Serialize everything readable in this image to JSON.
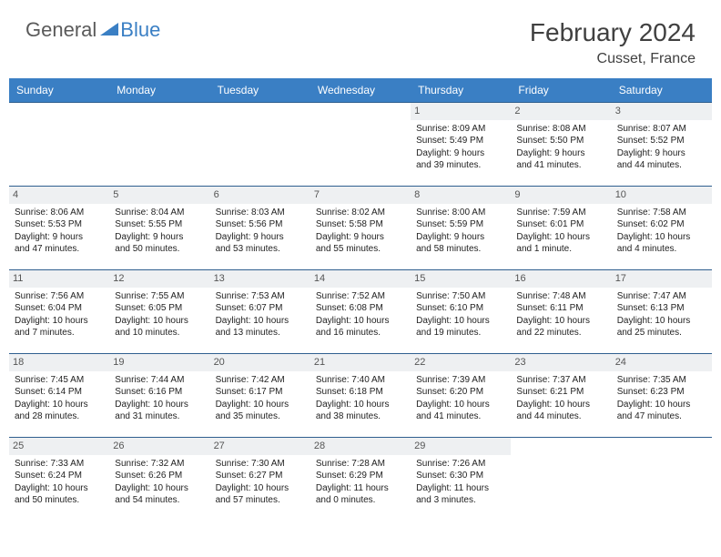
{
  "logo": {
    "text1": "General",
    "text2": "Blue"
  },
  "title": "February 2024",
  "location": "Cusset, France",
  "weekdays": [
    "Sunday",
    "Monday",
    "Tuesday",
    "Wednesday",
    "Thursday",
    "Friday",
    "Saturday"
  ],
  "colors": {
    "header_bg": "#3a7fc4",
    "header_text": "#ffffff",
    "rule": "#2f5f8f",
    "daynum_bg": "#eef0f2"
  },
  "grid": [
    [
      null,
      null,
      null,
      null,
      {
        "n": "1",
        "sr": "Sunrise: 8:09 AM",
        "ss": "Sunset: 5:49 PM",
        "d1": "Daylight: 9 hours",
        "d2": "and 39 minutes."
      },
      {
        "n": "2",
        "sr": "Sunrise: 8:08 AM",
        "ss": "Sunset: 5:50 PM",
        "d1": "Daylight: 9 hours",
        "d2": "and 41 minutes."
      },
      {
        "n": "3",
        "sr": "Sunrise: 8:07 AM",
        "ss": "Sunset: 5:52 PM",
        "d1": "Daylight: 9 hours",
        "d2": "and 44 minutes."
      }
    ],
    [
      {
        "n": "4",
        "sr": "Sunrise: 8:06 AM",
        "ss": "Sunset: 5:53 PM",
        "d1": "Daylight: 9 hours",
        "d2": "and 47 minutes."
      },
      {
        "n": "5",
        "sr": "Sunrise: 8:04 AM",
        "ss": "Sunset: 5:55 PM",
        "d1": "Daylight: 9 hours",
        "d2": "and 50 minutes."
      },
      {
        "n": "6",
        "sr": "Sunrise: 8:03 AM",
        "ss": "Sunset: 5:56 PM",
        "d1": "Daylight: 9 hours",
        "d2": "and 53 minutes."
      },
      {
        "n": "7",
        "sr": "Sunrise: 8:02 AM",
        "ss": "Sunset: 5:58 PM",
        "d1": "Daylight: 9 hours",
        "d2": "and 55 minutes."
      },
      {
        "n": "8",
        "sr": "Sunrise: 8:00 AM",
        "ss": "Sunset: 5:59 PM",
        "d1": "Daylight: 9 hours",
        "d2": "and 58 minutes."
      },
      {
        "n": "9",
        "sr": "Sunrise: 7:59 AM",
        "ss": "Sunset: 6:01 PM",
        "d1": "Daylight: 10 hours",
        "d2": "and 1 minute."
      },
      {
        "n": "10",
        "sr": "Sunrise: 7:58 AM",
        "ss": "Sunset: 6:02 PM",
        "d1": "Daylight: 10 hours",
        "d2": "and 4 minutes."
      }
    ],
    [
      {
        "n": "11",
        "sr": "Sunrise: 7:56 AM",
        "ss": "Sunset: 6:04 PM",
        "d1": "Daylight: 10 hours",
        "d2": "and 7 minutes."
      },
      {
        "n": "12",
        "sr": "Sunrise: 7:55 AM",
        "ss": "Sunset: 6:05 PM",
        "d1": "Daylight: 10 hours",
        "d2": "and 10 minutes."
      },
      {
        "n": "13",
        "sr": "Sunrise: 7:53 AM",
        "ss": "Sunset: 6:07 PM",
        "d1": "Daylight: 10 hours",
        "d2": "and 13 minutes."
      },
      {
        "n": "14",
        "sr": "Sunrise: 7:52 AM",
        "ss": "Sunset: 6:08 PM",
        "d1": "Daylight: 10 hours",
        "d2": "and 16 minutes."
      },
      {
        "n": "15",
        "sr": "Sunrise: 7:50 AM",
        "ss": "Sunset: 6:10 PM",
        "d1": "Daylight: 10 hours",
        "d2": "and 19 minutes."
      },
      {
        "n": "16",
        "sr": "Sunrise: 7:48 AM",
        "ss": "Sunset: 6:11 PM",
        "d1": "Daylight: 10 hours",
        "d2": "and 22 minutes."
      },
      {
        "n": "17",
        "sr": "Sunrise: 7:47 AM",
        "ss": "Sunset: 6:13 PM",
        "d1": "Daylight: 10 hours",
        "d2": "and 25 minutes."
      }
    ],
    [
      {
        "n": "18",
        "sr": "Sunrise: 7:45 AM",
        "ss": "Sunset: 6:14 PM",
        "d1": "Daylight: 10 hours",
        "d2": "and 28 minutes."
      },
      {
        "n": "19",
        "sr": "Sunrise: 7:44 AM",
        "ss": "Sunset: 6:16 PM",
        "d1": "Daylight: 10 hours",
        "d2": "and 31 minutes."
      },
      {
        "n": "20",
        "sr": "Sunrise: 7:42 AM",
        "ss": "Sunset: 6:17 PM",
        "d1": "Daylight: 10 hours",
        "d2": "and 35 minutes."
      },
      {
        "n": "21",
        "sr": "Sunrise: 7:40 AM",
        "ss": "Sunset: 6:18 PM",
        "d1": "Daylight: 10 hours",
        "d2": "and 38 minutes."
      },
      {
        "n": "22",
        "sr": "Sunrise: 7:39 AM",
        "ss": "Sunset: 6:20 PM",
        "d1": "Daylight: 10 hours",
        "d2": "and 41 minutes."
      },
      {
        "n": "23",
        "sr": "Sunrise: 7:37 AM",
        "ss": "Sunset: 6:21 PM",
        "d1": "Daylight: 10 hours",
        "d2": "and 44 minutes."
      },
      {
        "n": "24",
        "sr": "Sunrise: 7:35 AM",
        "ss": "Sunset: 6:23 PM",
        "d1": "Daylight: 10 hours",
        "d2": "and 47 minutes."
      }
    ],
    [
      {
        "n": "25",
        "sr": "Sunrise: 7:33 AM",
        "ss": "Sunset: 6:24 PM",
        "d1": "Daylight: 10 hours",
        "d2": "and 50 minutes."
      },
      {
        "n": "26",
        "sr": "Sunrise: 7:32 AM",
        "ss": "Sunset: 6:26 PM",
        "d1": "Daylight: 10 hours",
        "d2": "and 54 minutes."
      },
      {
        "n": "27",
        "sr": "Sunrise: 7:30 AM",
        "ss": "Sunset: 6:27 PM",
        "d1": "Daylight: 10 hours",
        "d2": "and 57 minutes."
      },
      {
        "n": "28",
        "sr": "Sunrise: 7:28 AM",
        "ss": "Sunset: 6:29 PM",
        "d1": "Daylight: 11 hours",
        "d2": "and 0 minutes."
      },
      {
        "n": "29",
        "sr": "Sunrise: 7:26 AM",
        "ss": "Sunset: 6:30 PM",
        "d1": "Daylight: 11 hours",
        "d2": "and 3 minutes."
      },
      null,
      null
    ]
  ]
}
